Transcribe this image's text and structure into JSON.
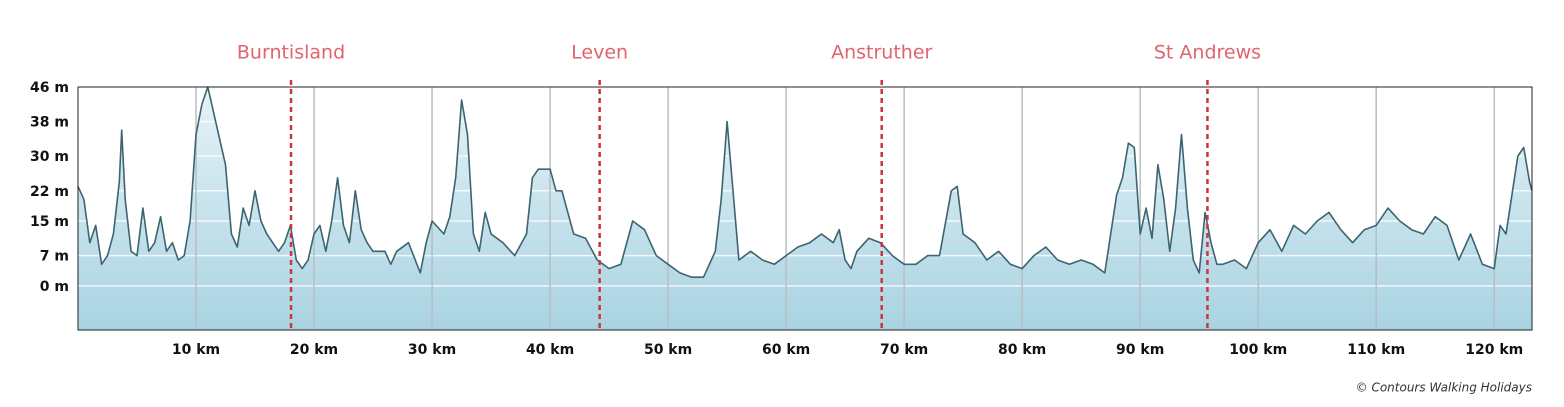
{
  "chart_data": {
    "type": "area",
    "x": [
      0,
      0.5,
      1,
      1.5,
      2,
      2.5,
      3,
      3.5,
      3.7,
      4,
      4.5,
      5,
      5.5,
      6,
      6.5,
      7,
      7.5,
      8,
      8.5,
      9,
      9.5,
      10,
      10.5,
      11,
      11.5,
      12,
      12.5,
      13,
      13.5,
      14,
      14.5,
      15,
      15.5,
      16,
      16.5,
      17,
      17.5,
      18,
      18.5,
      19,
      19.5,
      20,
      20.5,
      21,
      21.5,
      22,
      22.5,
      23,
      23.5,
      24,
      24.5,
      25,
      26,
      26.5,
      27,
      28,
      29,
      29.5,
      30,
      31,
      31.5,
      32,
      32.5,
      33,
      33.5,
      34,
      34.5,
      35,
      36,
      37,
      38,
      38.5,
      39,
      40,
      40.5,
      41,
      42,
      43,
      44,
      45,
      46,
      47,
      48,
      48.5,
      49,
      50,
      51,
      52,
      53,
      54,
      54.5,
      55,
      55.5,
      56,
      57,
      58,
      59,
      60,
      61,
      62,
      63,
      64,
      64.5,
      65,
      65.5,
      66,
      67,
      68,
      69,
      70,
      71,
      72,
      73,
      74,
      74.5,
      75,
      76,
      77,
      78,
      79,
      80,
      81,
      82,
      83,
      84,
      85,
      86,
      87,
      88,
      88.5,
      89,
      89.5,
      90,
      90.5,
      91,
      91.5,
      92,
      92.5,
      93,
      93.5,
      94,
      94.5,
      95,
      95.5,
      96,
      96.5,
      97,
      98,
      99,
      100,
      101,
      102,
      103,
      104,
      105,
      106,
      107,
      108,
      109,
      110,
      111,
      112,
      113,
      114,
      115,
      116,
      117,
      118,
      119,
      120,
      120.5,
      121,
      122,
      122.5,
      123,
      123.2
    ],
    "values": [
      23,
      20,
      10,
      14,
      5,
      7,
      12,
      24,
      36,
      20,
      8,
      7,
      18,
      8,
      10,
      16,
      8,
      10,
      6,
      7,
      15,
      35,
      42,
      46,
      40,
      34,
      28,
      12,
      9,
      18,
      14,
      22,
      15,
      12,
      10,
      8,
      10,
      14,
      6,
      4,
      6,
      12,
      14,
      8,
      15,
      25,
      14,
      10,
      22,
      13,
      10,
      8,
      8,
      5,
      8,
      10,
      3,
      10,
      15,
      12,
      16,
      25,
      43,
      35,
      12,
      8,
      17,
      12,
      10,
      7,
      12,
      25,
      27,
      27,
      22,
      22,
      12,
      11,
      6,
      4,
      5,
      15,
      13,
      10,
      7,
      5,
      3,
      2,
      2,
      8,
      20,
      38,
      22,
      6,
      8,
      6,
      5,
      7,
      9,
      10,
      12,
      10,
      13,
      6,
      4,
      8,
      11,
      10,
      7,
      5,
      5,
      7,
      7,
      22,
      23,
      12,
      10,
      6,
      8,
      5,
      4,
      7,
      9,
      6,
      5,
      6,
      5,
      3,
      21,
      25,
      33,
      32,
      12,
      18,
      11,
      28,
      20,
      8,
      18,
      35,
      18,
      6,
      3,
      17,
      10,
      5,
      5,
      6,
      4,
      10,
      13,
      8,
      14,
      12,
      15,
      17,
      13,
      10,
      13,
      14,
      18,
      15,
      13,
      12,
      16,
      14,
      6,
      12,
      5,
      4,
      14,
      12,
      30,
      32,
      24,
      22
    ],
    "color": "#3d6470",
    "xlim": [
      0,
      123.2
    ],
    "ylim": [
      -10.2,
      46
    ],
    "xticks": [
      {
        "value": 10,
        "label": "10 km"
      },
      {
        "value": 20,
        "label": "20 km"
      },
      {
        "value": 30,
        "label": "30 km"
      },
      {
        "value": 40,
        "label": "40 km"
      },
      {
        "value": 50,
        "label": "50 km"
      },
      {
        "value": 60,
        "label": "60 km"
      },
      {
        "value": 70,
        "label": "70 km"
      },
      {
        "value": 80,
        "label": "80 km"
      },
      {
        "value": 90,
        "label": "90 km"
      },
      {
        "value": 100,
        "label": "100 km"
      },
      {
        "value": 110,
        "label": "110 km"
      },
      {
        "value": 120,
        "label": "120 km"
      }
    ],
    "yticks": [
      {
        "value": 0,
        "label": "0 m"
      },
      {
        "value": 7,
        "label": "7 m"
      },
      {
        "value": 15,
        "label": "15 m"
      },
      {
        "value": 22,
        "label": "22 m"
      },
      {
        "value": 30,
        "label": "30 m"
      },
      {
        "value": 38,
        "label": "38 m"
      },
      {
        "value": 46,
        "label": "46 m"
      }
    ],
    "grid": true,
    "markers": [
      {
        "label": "Burntisland",
        "x": 18.05
      },
      {
        "label": "Leven",
        "x": 44.2
      },
      {
        "label": "Anstruther",
        "x": 68.1
      },
      {
        "label": "St Andrews",
        "x": 95.7
      }
    ],
    "credit": "© Contours Walking Holidays"
  }
}
